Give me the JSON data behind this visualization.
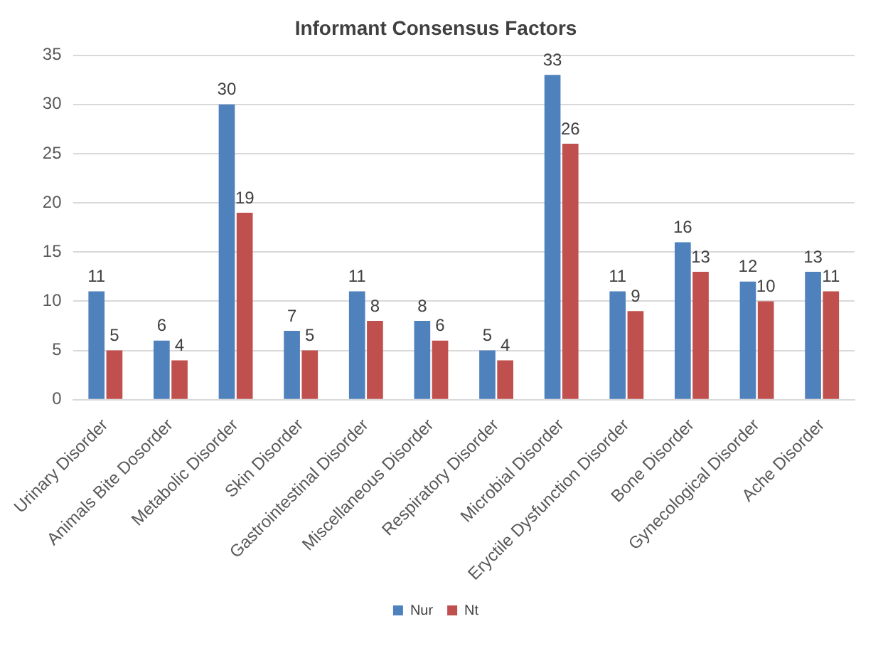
{
  "chart_data": {
    "type": "bar",
    "title": "Informant Consensus Factors",
    "categories": [
      "Urinary Disorder",
      "Animals Bite Dosorder",
      "Metabolic Disorder",
      "Skin Disorder",
      "Gastrointestinal Disorder",
      "Miscellaneous Disorder",
      "Respiratory Disorder",
      "Microbial Disorder",
      "Eryctile Dysfunction Disorder",
      "Bone Disorder",
      "Gynecological Disorder",
      "Ache Disorder"
    ],
    "series": [
      {
        "name": "Nur",
        "color": "#4f81bd",
        "values": [
          11,
          6,
          30,
          7,
          11,
          8,
          5,
          33,
          11,
          16,
          12,
          13
        ]
      },
      {
        "name": "Nt",
        "color": "#c0504d",
        "values": [
          5,
          4,
          19,
          5,
          8,
          6,
          4,
          26,
          9,
          13,
          10,
          11
        ]
      }
    ],
    "ylim": [
      0,
      35
    ],
    "yticks": [
      0,
      5,
      10,
      15,
      20,
      25,
      30,
      35
    ],
    "grid": "y",
    "legend": "bottom",
    "data_labels": true
  }
}
